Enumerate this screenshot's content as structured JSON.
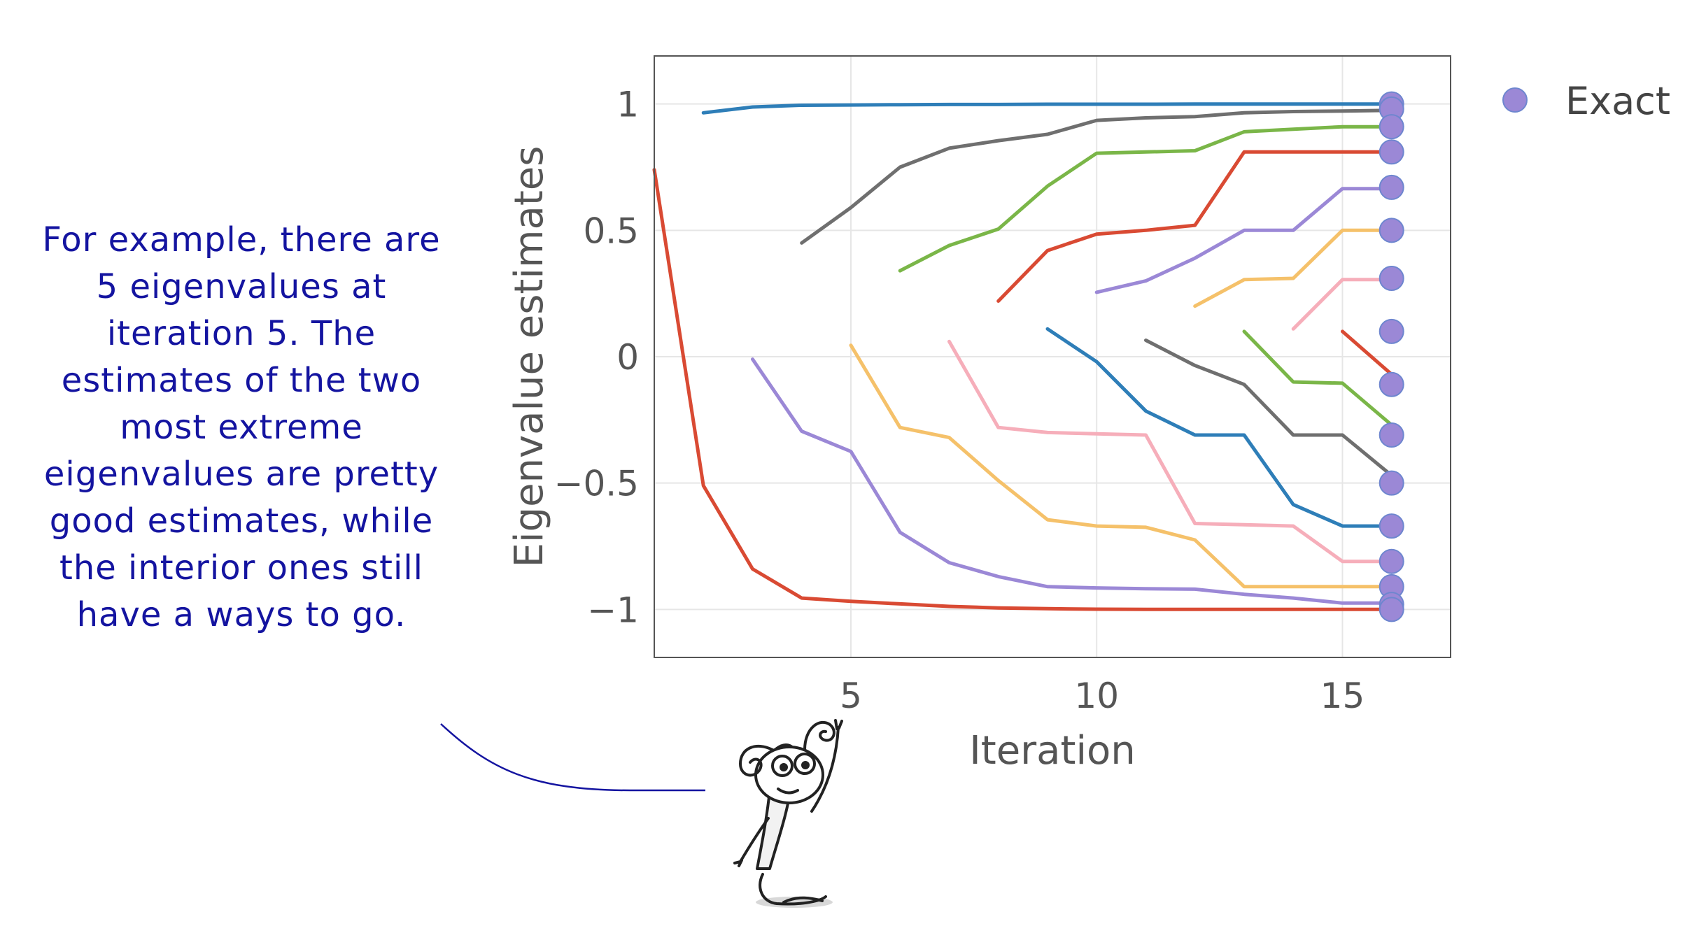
{
  "annotation": {
    "text": "For example, there are 5 eigenvalues at iteration 5. The estimates of the two most extreme eigenvalues are pretty good estimates, while the interior ones still have a ways to go."
  },
  "chart_data": {
    "type": "line",
    "title": "",
    "xlabel": "Iteration",
    "ylabel": "Eigenvalue estimates",
    "xlim": [
      1,
      17.2
    ],
    "ylim": [
      -1.19,
      1.19
    ],
    "xticks": [
      5,
      10,
      15
    ],
    "yticks": [
      1,
      0.5,
      0,
      -0.5,
      -1
    ],
    "ytick_labels": [
      "1",
      "0.5",
      "0",
      "−0.5",
      "−1"
    ],
    "grid": true,
    "legend_position": "top-right",
    "series": [
      {
        "color": "#2e7eb8",
        "points": [
          [
            2,
            0.965
          ],
          [
            3,
            0.988
          ],
          [
            4,
            0.995
          ],
          [
            5,
            0.996
          ],
          [
            6,
            0.997
          ],
          [
            7,
            0.998
          ],
          [
            8,
            0.998
          ],
          [
            9,
            0.999
          ],
          [
            10,
            0.999
          ],
          [
            11,
            0.999
          ],
          [
            12,
            1.0
          ],
          [
            13,
            1.0
          ],
          [
            14,
            1.0
          ],
          [
            15,
            1.0
          ],
          [
            16,
            1.0
          ]
        ]
      },
      {
        "color": "#d94a33",
        "points": [
          [
            1,
            0.74
          ],
          [
            2,
            -0.51
          ],
          [
            3,
            -0.84
          ],
          [
            4,
            -0.955
          ],
          [
            5,
            -0.968
          ],
          [
            6,
            -0.978
          ],
          [
            7,
            -0.988
          ],
          [
            8,
            -0.994
          ],
          [
            9,
            -0.997
          ],
          [
            10,
            -0.999
          ],
          [
            11,
            -1.0
          ],
          [
            12,
            -1.0
          ],
          [
            13,
            -1.0
          ],
          [
            14,
            -1.0
          ],
          [
            15,
            -1.0
          ],
          [
            16,
            -1.0
          ]
        ]
      },
      {
        "color": "#9b88d6",
        "points": [
          [
            3,
            -0.01
          ],
          [
            4,
            -0.295
          ],
          [
            5,
            -0.375
          ],
          [
            6,
            -0.695
          ],
          [
            7,
            -0.815
          ],
          [
            8,
            -0.87
          ],
          [
            9,
            -0.91
          ],
          [
            10,
            -0.915
          ],
          [
            11,
            -0.918
          ],
          [
            12,
            -0.92
          ],
          [
            13,
            -0.94
          ],
          [
            14,
            -0.955
          ],
          [
            15,
            -0.975
          ],
          [
            16,
            -0.975
          ]
        ]
      },
      {
        "color": "#6f6f6f",
        "points": [
          [
            4,
            0.45
          ],
          [
            5,
            0.59
          ],
          [
            6,
            0.75
          ],
          [
            7,
            0.825
          ],
          [
            8,
            0.855
          ],
          [
            9,
            0.88
          ],
          [
            10,
            0.935
          ],
          [
            11,
            0.945
          ],
          [
            12,
            0.95
          ],
          [
            13,
            0.965
          ],
          [
            14,
            0.97
          ],
          [
            15,
            0.972
          ],
          [
            16,
            0.975
          ]
        ]
      },
      {
        "color": "#f5c16a",
        "points": [
          [
            5,
            0.045
          ],
          [
            6,
            -0.28
          ],
          [
            7,
            -0.32
          ],
          [
            8,
            -0.49
          ],
          [
            9,
            -0.645
          ],
          [
            10,
            -0.67
          ],
          [
            11,
            -0.675
          ],
          [
            12,
            -0.725
          ],
          [
            13,
            -0.91
          ],
          [
            14,
            -0.91
          ],
          [
            15,
            -0.91
          ],
          [
            16,
            -0.91
          ]
        ]
      },
      {
        "color": "#7ab648",
        "points": [
          [
            6,
            0.34
          ],
          [
            7,
            0.44
          ],
          [
            8,
            0.505
          ],
          [
            9,
            0.675
          ],
          [
            10,
            0.805
          ],
          [
            11,
            0.81
          ],
          [
            12,
            0.815
          ],
          [
            13,
            0.89
          ],
          [
            14,
            0.9
          ],
          [
            15,
            0.91
          ],
          [
            16,
            0.91
          ]
        ]
      },
      {
        "color": "#f6aeba",
        "points": [
          [
            7,
            0.06
          ],
          [
            8,
            -0.28
          ],
          [
            9,
            -0.3
          ],
          [
            10,
            -0.305
          ],
          [
            11,
            -0.31
          ],
          [
            12,
            -0.66
          ],
          [
            13,
            -0.665
          ],
          [
            14,
            -0.67
          ],
          [
            15,
            -0.81
          ],
          [
            16,
            -0.81
          ]
        ]
      },
      {
        "color": "#d94a33",
        "points": [
          [
            8,
            0.22
          ],
          [
            9,
            0.42
          ],
          [
            10,
            0.485
          ],
          [
            11,
            0.5
          ],
          [
            12,
            0.52
          ],
          [
            13,
            0.81
          ],
          [
            14,
            0.81
          ],
          [
            15,
            0.81
          ],
          [
            16,
            0.81
          ]
        ]
      },
      {
        "color": "#2e7eb8",
        "points": [
          [
            9,
            0.11
          ],
          [
            10,
            -0.02
          ],
          [
            11,
            -0.215
          ],
          [
            12,
            -0.31
          ],
          [
            13,
            -0.31
          ],
          [
            14,
            -0.585
          ],
          [
            15,
            -0.67
          ],
          [
            16,
            -0.67
          ]
        ]
      },
      {
        "color": "#9b88d6",
        "points": [
          [
            10,
            0.255
          ],
          [
            11,
            0.3
          ],
          [
            12,
            0.39
          ],
          [
            13,
            0.5
          ],
          [
            14,
            0.5
          ],
          [
            15,
            0.665
          ],
          [
            16,
            0.665
          ]
        ]
      },
      {
        "color": "#6f6f6f",
        "points": [
          [
            11,
            0.065
          ],
          [
            12,
            -0.035
          ],
          [
            13,
            -0.11
          ],
          [
            14,
            -0.31
          ],
          [
            15,
            -0.31
          ],
          [
            16,
            -0.47
          ]
        ]
      },
      {
        "color": "#f5c16a",
        "points": [
          [
            12,
            0.2
          ],
          [
            13,
            0.305
          ],
          [
            14,
            0.31
          ],
          [
            15,
            0.5
          ],
          [
            16,
            0.5
          ]
        ]
      },
      {
        "color": "#7ab648",
        "points": [
          [
            13,
            0.1
          ],
          [
            14,
            -0.1
          ],
          [
            15,
            -0.105
          ],
          [
            16,
            -0.27
          ]
        ]
      },
      {
        "color": "#f6aeba",
        "points": [
          [
            14,
            0.11
          ],
          [
            15,
            0.305
          ],
          [
            16,
            0.305
          ]
        ]
      },
      {
        "color": "#d94a33",
        "points": [
          [
            15,
            0.1
          ],
          [
            16,
            -0.07
          ]
        ]
      }
    ],
    "exact": {
      "name": "Exact",
      "color": "#9b88d6",
      "x": 16,
      "values": [
        1.0,
        0.98,
        0.91,
        0.81,
        0.67,
        0.5,
        0.31,
        0.1,
        -0.11,
        -0.31,
        -0.5,
        -0.67,
        -0.81,
        -0.91,
        -0.98,
        -1.0
      ]
    }
  }
}
